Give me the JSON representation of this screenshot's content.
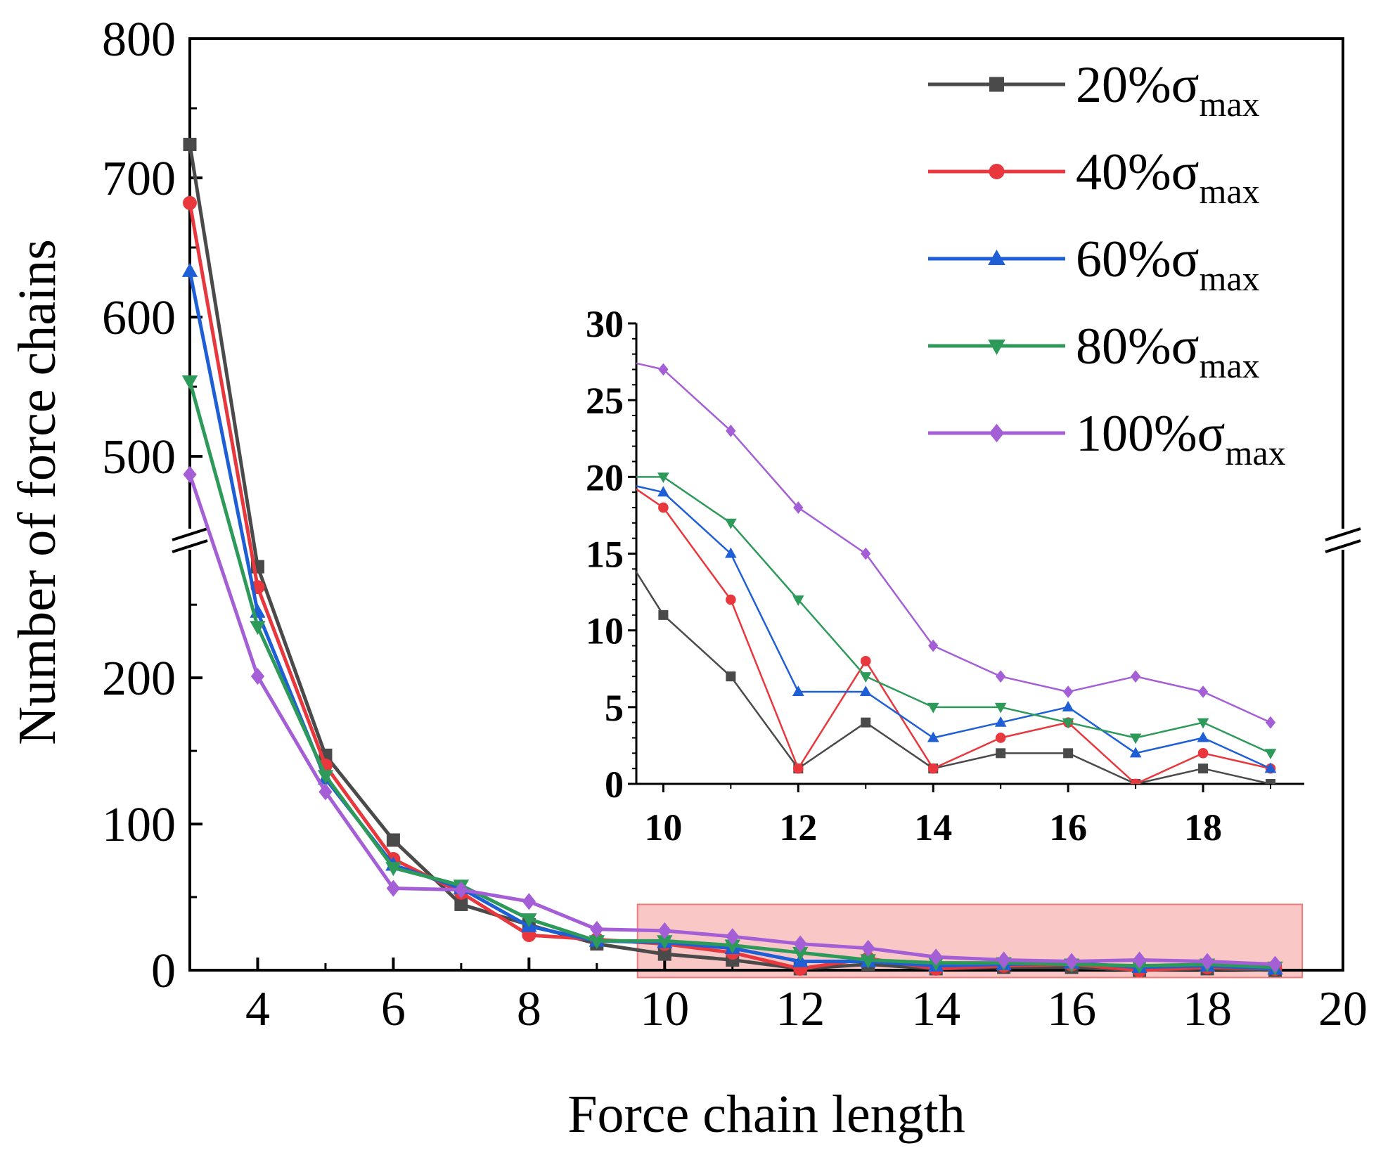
{
  "chart_data": {
    "type": "line",
    "main": {
      "xlabel": "Force chain length",
      "ylabel": "Number of force chains",
      "xlim": [
        3,
        20
      ],
      "x_ticks": [
        "4",
        "6",
        "8",
        "10",
        "12",
        "14",
        "16",
        "18",
        "20"
      ],
      "y_axis_break": true,
      "ylim_lower": [
        0,
        290
      ],
      "ylim_upper": [
        445,
        800
      ],
      "y_ticks_lower": [
        "0",
        "100",
        "200"
      ],
      "y_ticks_upper": [
        "500",
        "600",
        "700",
        "800"
      ],
      "highlight_region": {
        "x": [
          9.6,
          19.4
        ],
        "y": [
          -5,
          45
        ],
        "color": "#f8b4b4"
      },
      "x": [
        3,
        4,
        5,
        6,
        7,
        8,
        9,
        10,
        11,
        12,
        13,
        14,
        15,
        16,
        17,
        18,
        19
      ],
      "series": [
        {
          "name": "20%σmax",
          "color": "#4a4a4a",
          "marker": "square",
          "values": [
            724,
            276,
            147,
            89,
            45,
            31,
            18,
            11,
            7,
            1,
            4,
            1,
            2,
            2,
            0,
            1,
            0
          ]
        },
        {
          "name": "40%σmax",
          "color": "#e8383d",
          "marker": "circle",
          "values": [
            682,
            262,
            140,
            76,
            53,
            24,
            21,
            18,
            12,
            1,
            8,
            1,
            3,
            4,
            0,
            2,
            1
          ]
        },
        {
          "name": "60%σmax",
          "color": "#1f5fd6",
          "marker": "triangle-up",
          "values": [
            633,
            245,
            131,
            72,
            56,
            30,
            20,
            19,
            15,
            6,
            6,
            3,
            4,
            5,
            2,
            3,
            1
          ]
        },
        {
          "name": "80%σmax",
          "color": "#2e9a5a",
          "marker": "triangle-down",
          "values": [
            554,
            235,
            133,
            70,
            58,
            35,
            20,
            20,
            17,
            12,
            7,
            5,
            5,
            4,
            3,
            4,
            2
          ]
        },
        {
          "name": "100%σmax",
          "color": "#a55fd6",
          "marker": "diamond",
          "values": [
            487,
            201,
            122,
            56,
            55,
            47,
            28,
            27,
            23,
            18,
            15,
            9,
            7,
            6,
            7,
            6,
            4
          ]
        }
      ]
    },
    "inset": {
      "xlim": [
        9.6,
        19.5
      ],
      "ylim": [
        0,
        30
      ],
      "x_ticks": [
        "10",
        "12",
        "14",
        "16",
        "18"
      ],
      "y_ticks": [
        "0",
        "5",
        "10",
        "15",
        "20",
        "25",
        "30"
      ],
      "x": [
        10,
        11,
        12,
        13,
        14,
        15,
        16,
        17,
        18,
        19
      ]
    },
    "legend": {
      "position": "top-right",
      "entries": [
        {
          "pct": "20%",
          "symbol": "σ",
          "sub": "max"
        },
        {
          "pct": "40%",
          "symbol": "σ",
          "sub": "max"
        },
        {
          "pct": "60%",
          "symbol": "σ",
          "sub": "max"
        },
        {
          "pct": "80%",
          "symbol": "σ",
          "sub": "max"
        },
        {
          "pct": "100%",
          "symbol": "σ",
          "sub": "max"
        }
      ]
    }
  }
}
